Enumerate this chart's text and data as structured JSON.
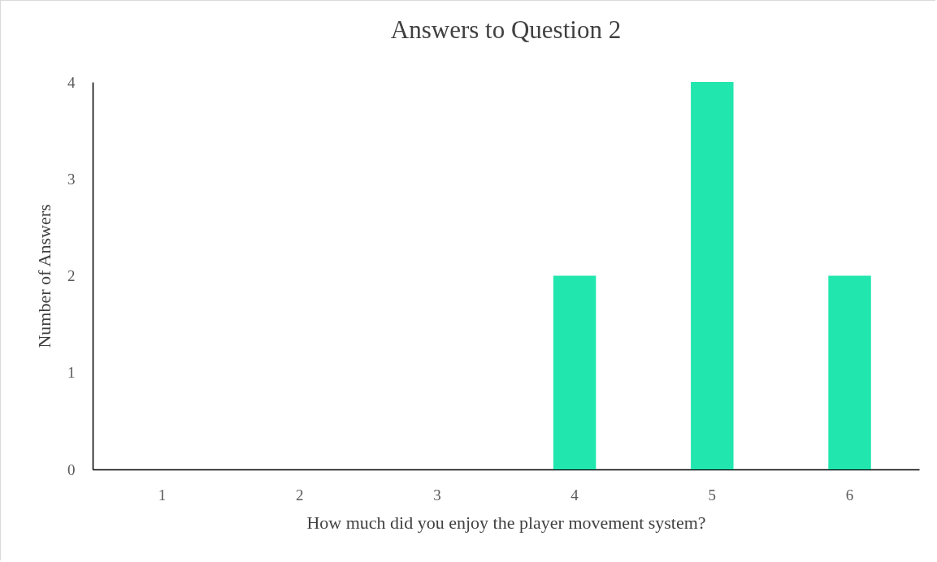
{
  "chart_data": {
    "type": "bar",
    "title": "Answers to Question 2",
    "xlabel": "How much did you enjoy the player movement  system?",
    "ylabel": "Number of Answers",
    "categories": [
      "1",
      "2",
      "3",
      "4",
      "5",
      "6"
    ],
    "values": [
      0,
      0,
      0,
      2,
      4,
      2
    ],
    "color": "#21e6ae",
    "ylim": [
      0,
      4
    ],
    "yticks": [
      0,
      1,
      2,
      3,
      4
    ],
    "grid": false
  }
}
